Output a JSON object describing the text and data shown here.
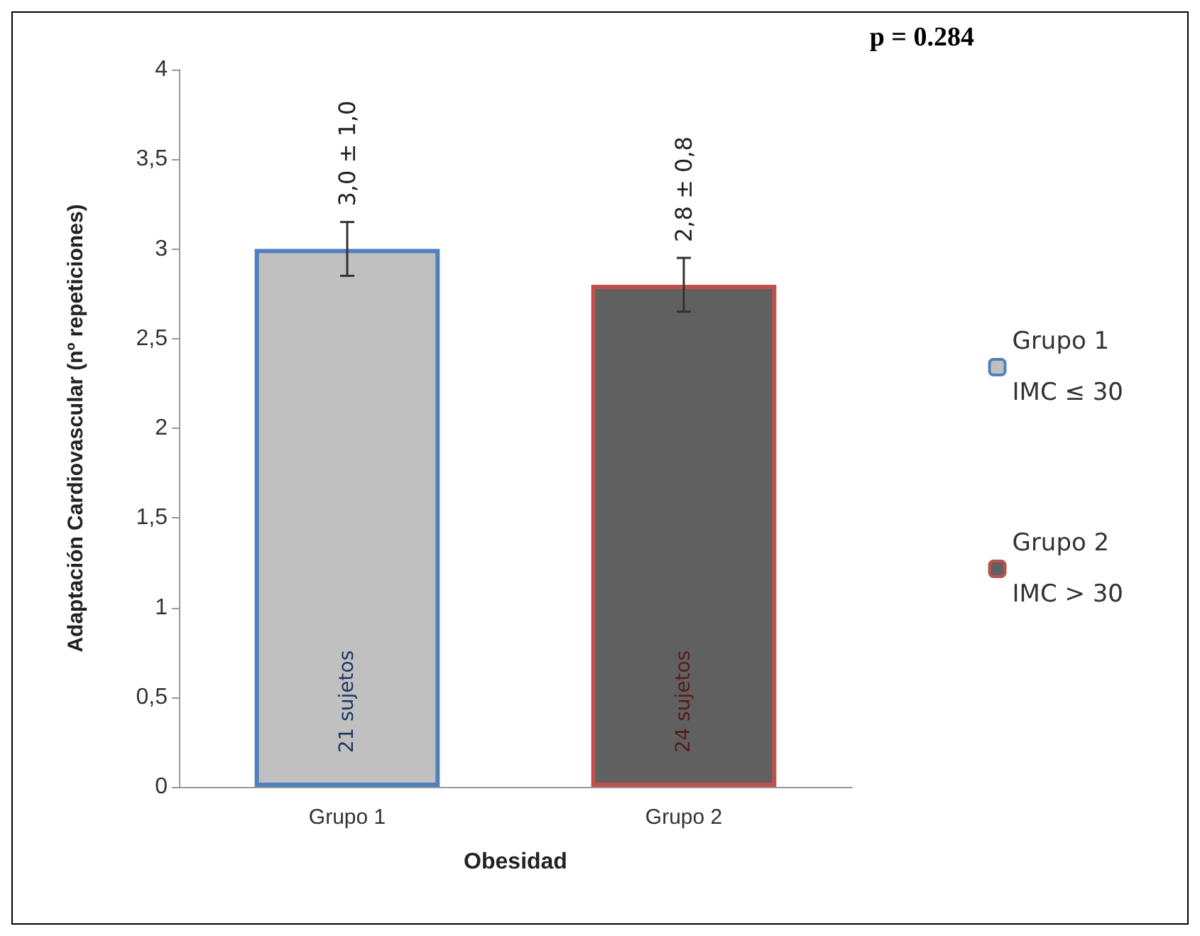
{
  "chart_data": {
    "type": "bar",
    "xlabel": "Obesidad",
    "ylabel": "Adaptación Cardiovascular (nº repeticiones)",
    "categories": [
      "Grupo 1",
      "Grupo 2"
    ],
    "series": [
      {
        "name": "Grupo 1\nIMC ≤ 30",
        "color": "#c0c0c0",
        "values": [
          3.0,
          null
        ],
        "errors": [
          0.15,
          null
        ],
        "value_labels": [
          "3,0 ± 1,0",
          null
        ]
      },
      {
        "name": "Grupo 2\nIMC > 30",
        "color": "#606060",
        "values": [
          null,
          2.8
        ],
        "errors": [
          null,
          0.15
        ],
        "value_labels": [
          null,
          "2,8 ± 0,8"
        ]
      }
    ],
    "ylim": [
      0,
      4
    ],
    "yticks": [
      0,
      {
        "value": 0.5,
        "label": "0,5"
      },
      1,
      {
        "value": 1.5,
        "label": "1,5"
      },
      2,
      {
        "value": 2.5,
        "label": "2,5"
      },
      3,
      {
        "value": 3.5,
        "label": "3,5"
      },
      4
    ],
    "grid": false,
    "legend": "right",
    "annotations": [
      "p = 0.284",
      "21 sujetos",
      "24 sujetos"
    ]
  }
}
